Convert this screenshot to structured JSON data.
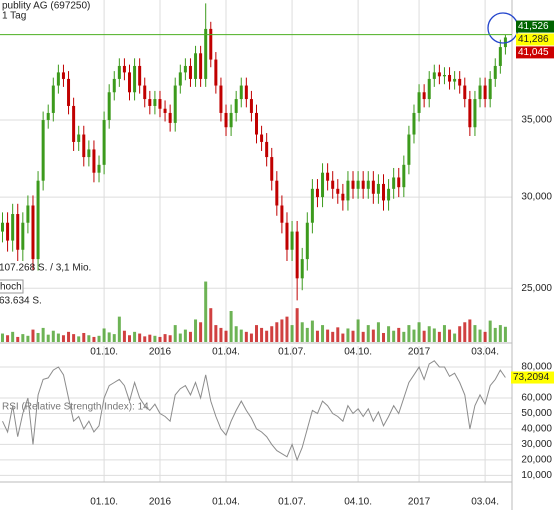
{
  "chart_data": {
    "type": "candlestick",
    "title": "publity AG (697250)",
    "subtitle": "1 Tag",
    "log_scale": true,
    "grid": true,
    "up_color": "#3c9a1c",
    "down_color": "#c00000",
    "categories": [
      null,
      null,
      null,
      null,
      null,
      null,
      null,
      null,
      null,
      null,
      null,
      null,
      null,
      null,
      null,
      null,
      null,
      null,
      null,
      null,
      "01.10.",
      null,
      null,
      null,
      null,
      null,
      null,
      null,
      null,
      null,
      null,
      "2016",
      null,
      null,
      null,
      null,
      null,
      null,
      null,
      null,
      null,
      null,
      null,
      null,
      "01.04.",
      null,
      null,
      null,
      null,
      null,
      null,
      null,
      null,
      null,
      null,
      null,
      null,
      "01.07.",
      null,
      null,
      null,
      null,
      null,
      null,
      null,
      null,
      null,
      null,
      null,
      null,
      "04.10.",
      null,
      null,
      null,
      null,
      null,
      null,
      null,
      null,
      null,
      null,
      null,
      "2017",
      null,
      null,
      null,
      null,
      null,
      null,
      null,
      null,
      null,
      null,
      null,
      null,
      "03.04.",
      null,
      null,
      null,
      null
    ],
    "open": [
      28,
      28.5,
      27.5,
      29,
      27,
      28.5,
      29.5,
      26.5,
      31,
      35,
      35.5,
      37.5,
      38.5,
      38,
      36,
      33.5,
      34,
      32.5,
      33,
      31.5,
      32,
      35,
      37,
      38,
      39,
      38.5,
      37,
      39,
      37.5,
      36.5,
      36,
      36.5,
      35.8,
      35.5,
      34.8,
      37.5,
      38.5,
      39,
      38,
      40,
      38,
      42,
      39.5,
      37.5,
      35.5,
      34.5,
      35.5,
      36.5,
      37.5,
      36.5,
      35.5,
      34,
      33.5,
      32.5,
      31,
      29.5,
      28.5,
      27,
      28,
      25.5,
      26.5,
      28.5,
      30.5,
      30,
      31.5,
      31,
      30.5,
      30.2,
      29.8,
      31,
      30.5,
      31,
      30.5,
      31,
      30.2,
      30.8,
      29.8,
      30.5,
      31.2,
      30.6,
      32,
      34,
      35.5,
      37,
      36.5,
      38,
      38.5,
      38.2,
      38.3,
      37.8,
      38,
      37.5,
      36.5,
      34.5,
      36.5,
      37.5,
      36.5,
      38,
      39,
      40.5
    ],
    "high": [
      29.1,
      29.1,
      29.6,
      29.6,
      29.1,
      30.1,
      30.1,
      31.6,
      35.6,
      36.1,
      38.1,
      39.1,
      39.1,
      38.6,
      36.6,
      34.6,
      34.6,
      33.6,
      33.6,
      32.6,
      35.6,
      37.6,
      38.6,
      39.6,
      39.6,
      39.1,
      39.6,
      39.6,
      38.1,
      37.1,
      37.1,
      37.1,
      36.4,
      36.1,
      38.1,
      39.1,
      39.6,
      39.6,
      40.6,
      40.6,
      44.2,
      42.6,
      40.1,
      38.1,
      36.1,
      36.1,
      37.1,
      38.1,
      38.1,
      37.1,
      36.1,
      34.6,
      34.1,
      33.1,
      31.6,
      30.1,
      29.1,
      28.6,
      28.6,
      27.1,
      29.1,
      31.1,
      31.1,
      32.1,
      32.1,
      31.6,
      31.1,
      30.8,
      31.6,
      31.6,
      31.6,
      31.6,
      31.6,
      31.6,
      31.4,
      31.4,
      31.1,
      31.8,
      31.8,
      32.6,
      34.6,
      36.1,
      37.6,
      37.6,
      38.6,
      39.1,
      39.1,
      38.9,
      38.9,
      38.6,
      38.6,
      38.1,
      37.1,
      37.1,
      38.1,
      38.1,
      38.6,
      39.6,
      41.1,
      41.526
    ],
    "low": [
      27.4,
      26.9,
      26.9,
      26.4,
      26.4,
      27.9,
      25.9,
      25.9,
      30.4,
      34.4,
      34.9,
      36.9,
      37.4,
      35.4,
      32.9,
      32.9,
      31.9,
      31.9,
      30.9,
      30.9,
      31.4,
      34.4,
      36.4,
      37.4,
      37.9,
      36.4,
      36.4,
      36.9,
      35.9,
      35.4,
      35.4,
      35.2,
      34.9,
      34.2,
      34.2,
      36.9,
      37.9,
      37.4,
      37.4,
      37.4,
      37.4,
      38.9,
      36.9,
      34.9,
      33.9,
      33.9,
      34.9,
      35.9,
      35.9,
      34.9,
      33.4,
      32.9,
      31.9,
      30.4,
      28.9,
      27.9,
      26.4,
      26.4,
      24.4,
      24.9,
      25.9,
      27.9,
      29.4,
      29.4,
      30.4,
      29.9,
      29.6,
      29.2,
      29.2,
      29.9,
      29.9,
      29.9,
      29.9,
      29.6,
      29.6,
      29.2,
      29.2,
      29.9,
      30,
      30,
      31.4,
      33.4,
      34.9,
      35.9,
      35.9,
      37.4,
      37.6,
      37.6,
      37.2,
      37.2,
      36.9,
      35.9,
      33.9,
      33.9,
      35.9,
      35.9,
      35.9,
      37.4,
      38.4,
      39.9
    ],
    "close": [
      28.5,
      27.5,
      29,
      27,
      28.5,
      29.5,
      26.5,
      31,
      35,
      35.5,
      37.5,
      38.5,
      38,
      36,
      33.5,
      34,
      32.5,
      33,
      31.5,
      32,
      35,
      37,
      38,
      39,
      38.5,
      37,
      39,
      37.5,
      36.5,
      36,
      36.5,
      35.8,
      35.5,
      34.8,
      37.5,
      38.5,
      39,
      38,
      40,
      38,
      42,
      39.5,
      37.5,
      35.5,
      34.5,
      35.5,
      36.5,
      37.5,
      36.5,
      35.5,
      34,
      33.5,
      32.5,
      31,
      29.5,
      28.5,
      27,
      28,
      25.5,
      26.5,
      28.5,
      30.5,
      30,
      31.5,
      31,
      30.5,
      30.2,
      29.8,
      31,
      30.5,
      31,
      30.5,
      31,
      30.2,
      30.8,
      29.8,
      30.5,
      31.2,
      30.6,
      32,
      34,
      35.5,
      37,
      36.5,
      38,
      38.5,
      38.2,
      38.3,
      37.8,
      38,
      37.5,
      36.5,
      34.5,
      36.5,
      37.5,
      36.5,
      38,
      39,
      40.5,
      41.286
    ],
    "ylim": [
      22.45,
      44.5
    ],
    "yticks": [
      {
        "value": 25,
        "label": "25,000"
      },
      {
        "value": 30,
        "label": "30,000"
      },
      {
        "value": 35,
        "label": "35,000"
      }
    ],
    "price_labels": [
      {
        "value": 41.526,
        "label": "41,526",
        "color": "#006400"
      },
      {
        "value": 41.286,
        "label": "41,286",
        "color": "#ffff00"
      },
      {
        "value": 41.045,
        "label": "41,045",
        "color": "#cc0000"
      }
    ],
    "volume": {
      "annotations": [
        "107.268 S. / 3,1 Mio.",
        "hoch",
        "63.634 S."
      ],
      "ylim": [
        0,
        110000
      ],
      "values": [
        15000,
        12000,
        18000,
        9000,
        14000,
        11000,
        22000,
        16000,
        25000,
        13000,
        20000,
        15000,
        12000,
        18000,
        14000,
        10000,
        16000,
        12000,
        9000,
        11000,
        24000,
        17000,
        14000,
        45000,
        20000,
        12000,
        18000,
        15000,
        10000,
        13000,
        11000,
        9000,
        14000,
        12000,
        30000,
        15000,
        22000,
        18000,
        40000,
        35000,
        107268,
        60000,
        30000,
        25000,
        20000,
        55000,
        28000,
        22000,
        18000,
        15000,
        30000,
        25000,
        20000,
        28000,
        35000,
        40000,
        45000,
        30000,
        60000,
        35000,
        25000,
        38000,
        20000,
        30000,
        22000,
        18000,
        26000,
        15000,
        24000,
        20000,
        40000,
        18000,
        30000,
        22000,
        35000,
        16000,
        28000,
        20000,
        25000,
        18000,
        30000,
        22000,
        35000,
        20000,
        28000,
        24000,
        18000,
        30000,
        22000,
        15000,
        28000,
        35000,
        40000,
        30000,
        22000,
        18000,
        38000,
        25000,
        30000,
        27000
      ]
    },
    "rsi": {
      "title": "RSI (Relative Strength Index): 14",
      "color": "#8c8c8c",
      "ylim": [
        7,
        91
      ],
      "yticks": [
        {
          "value": 10,
          "label": "10,000"
        },
        {
          "value": 20,
          "label": "20,000"
        },
        {
          "value": 30,
          "label": "30,000"
        },
        {
          "value": 40,
          "label": "40,000"
        },
        {
          "value": 50,
          "label": "50,000"
        },
        {
          "value": 60,
          "label": "60,000"
        },
        {
          "value": 80,
          "label": "80,000"
        }
      ],
      "current": {
        "value": 73.2094,
        "label": "73,2094",
        "color": "#ffff00"
      },
      "values": [
        45,
        38,
        55,
        35,
        50,
        60,
        30,
        62,
        72,
        73,
        78,
        80,
        75,
        60,
        45,
        48,
        40,
        45,
        38,
        42,
        60,
        68,
        70,
        72,
        68,
        58,
        70,
        60,
        55,
        52,
        56,
        50,
        48,
        45,
        62,
        66,
        68,
        62,
        70,
        60,
        75,
        58,
        48,
        40,
        36,
        45,
        52,
        58,
        52,
        47,
        40,
        38,
        35,
        30,
        26,
        24,
        22,
        30,
        20,
        28,
        40,
        52,
        50,
        58,
        55,
        50,
        48,
        45,
        55,
        50,
        53,
        48,
        53,
        45,
        51,
        42,
        48,
        55,
        50,
        60,
        70,
        75,
        80,
        72,
        82,
        84,
        80,
        80,
        74,
        76,
        70,
        62,
        40,
        55,
        62,
        56,
        68,
        72,
        78,
        73.2094
      ]
    }
  }
}
